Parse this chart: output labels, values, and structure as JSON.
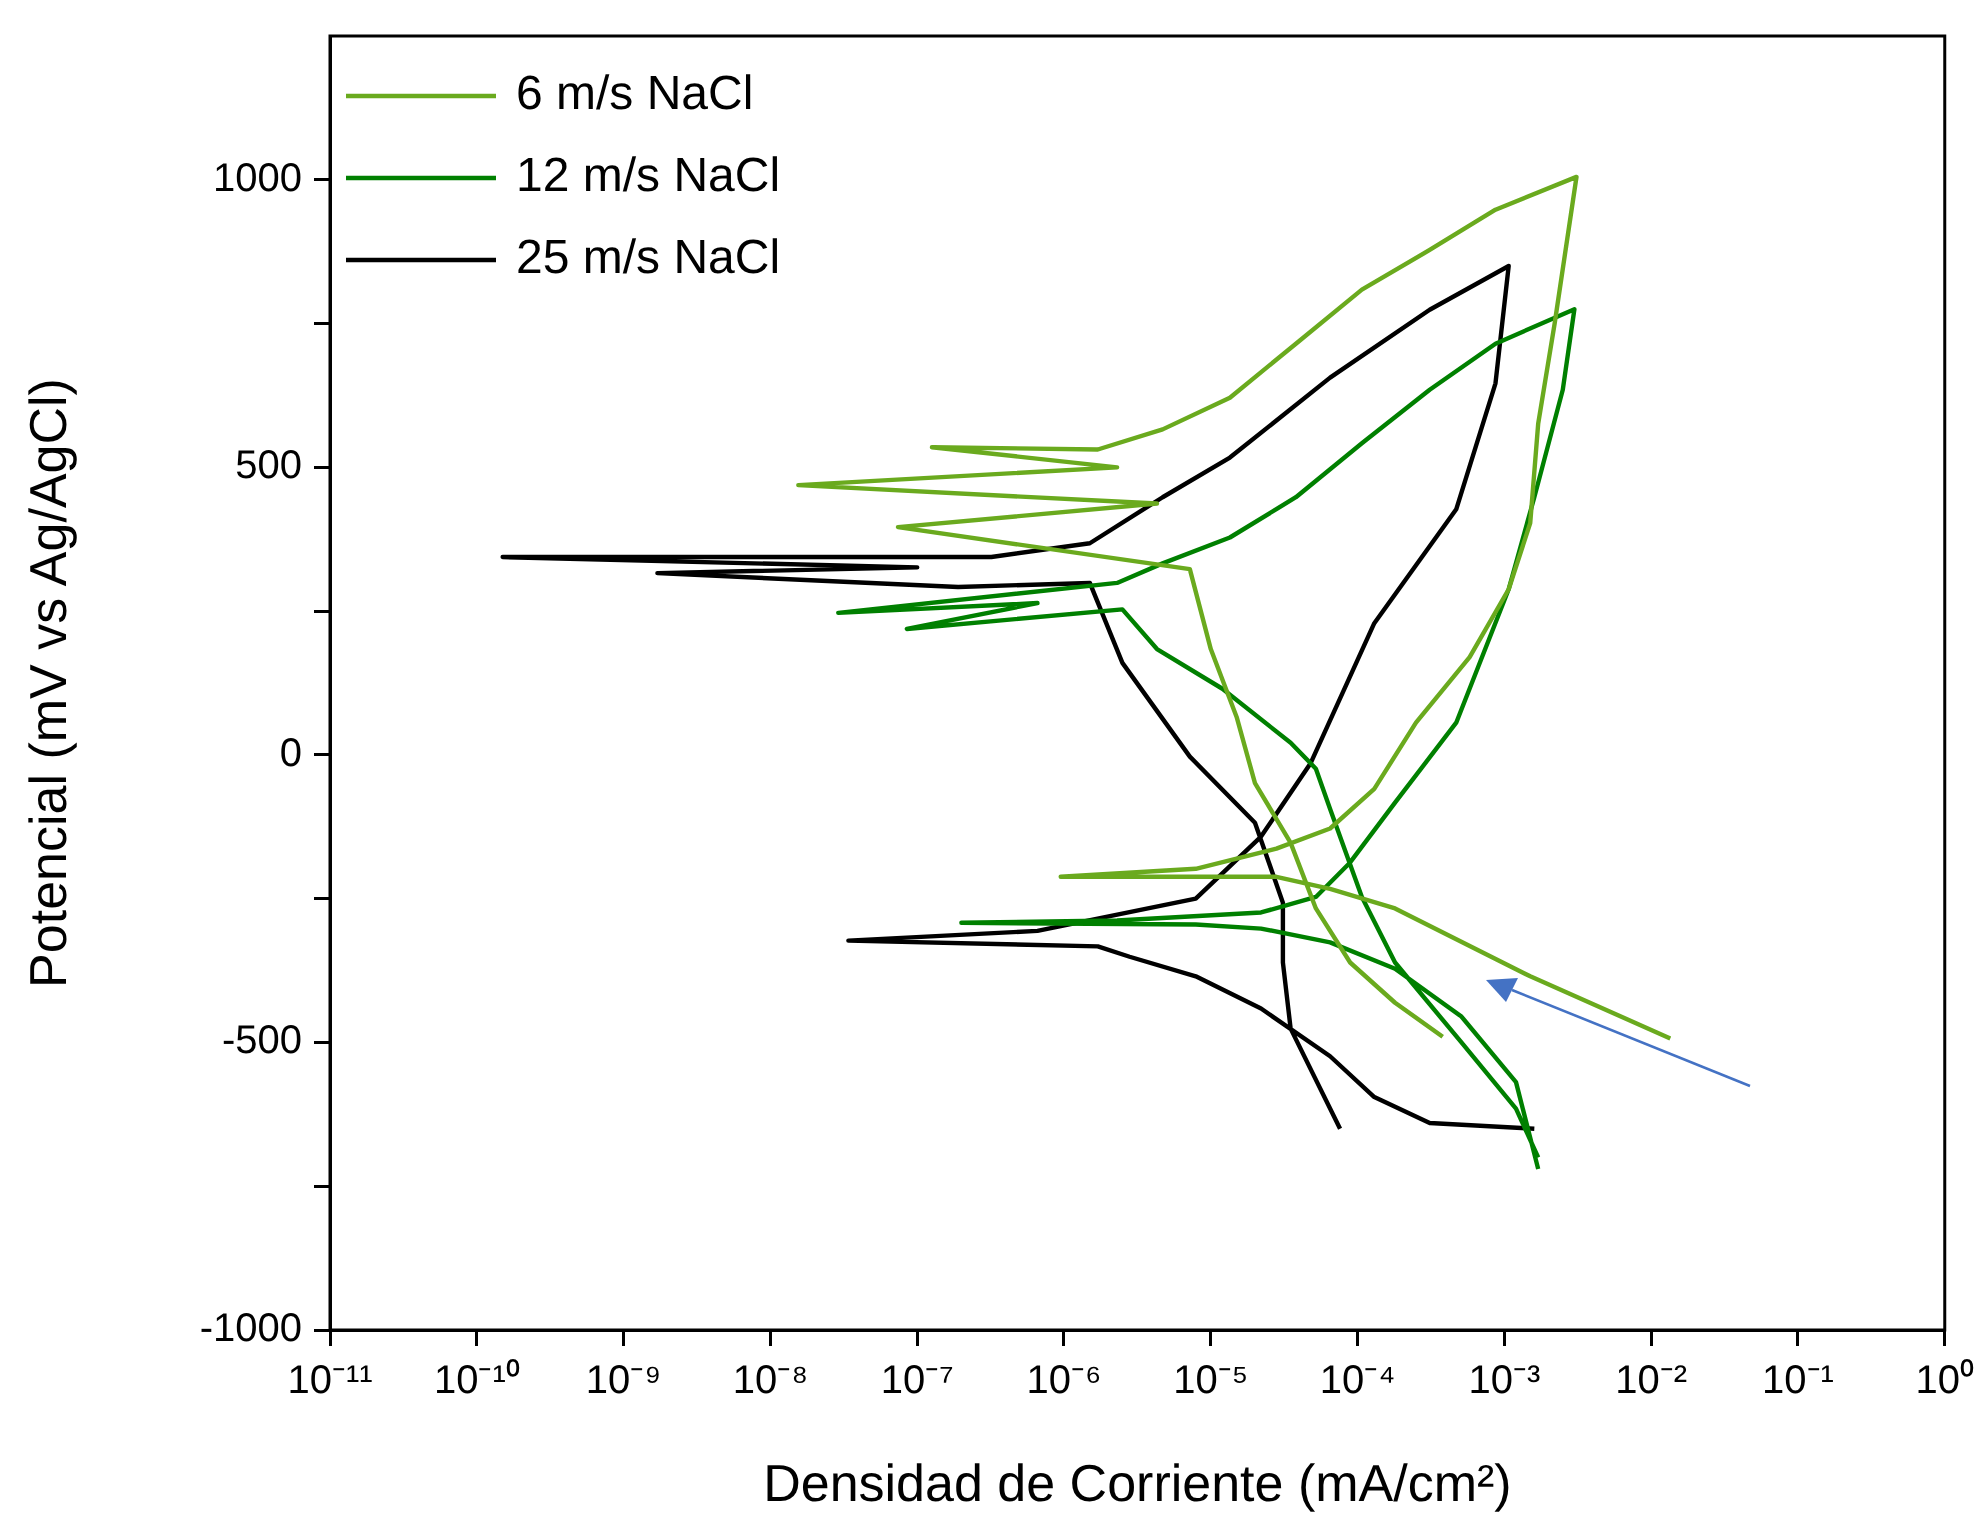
{
  "chart_data": {
    "type": "line",
    "xlabel": "Densidad de Corriente (mA/cm²)",
    "ylabel": "Potencial (mV vs Ag/AgCl)",
    "log": "x",
    "grid": false,
    "legend": "top left",
    "marker": "none",
    "xlim": [
      1e-11,
      1
    ],
    "ylim": [
      -1000,
      1250
    ],
    "xticks": [
      {
        "value": 1e-11,
        "label": "10⁻¹¹"
      },
      {
        "value": 1e-10,
        "label": "10⁻¹⁰"
      },
      {
        "value": 1e-09,
        "label": "10⁻⁹"
      },
      {
        "value": 1e-08,
        "label": "10⁻⁸"
      },
      {
        "value": 1e-07,
        "label": "10⁻⁷"
      },
      {
        "value": 1e-06,
        "label": "10⁻⁶"
      },
      {
        "value": 1e-05,
        "label": "10⁻⁵"
      },
      {
        "value": 0.0001,
        "label": "10⁻⁴"
      },
      {
        "value": 0.001,
        "label": "10⁻³"
      },
      {
        "value": 0.01,
        "label": "10⁻²"
      },
      {
        "value": 0.1,
        "label": "10⁻¹"
      },
      {
        "value": 1,
        "label": "10⁰"
      }
    ],
    "yticks": [
      -1000,
      {
        "value": -750,
        "label": null
      },
      -500,
      {
        "value": -250,
        "label": null
      },
      0,
      {
        "value": 250,
        "label": null
      },
      500,
      {
        "value": 750,
        "label": null
      },
      1000
    ],
    "series": [
      {
        "name": "6 m/s NaCl",
        "color": "#6aaa1e",
        "x": [
          0.0135,
          0.0015,
          0.00018,
          6.5e-05,
          2.8e-05,
          9.5e-07,
          7.9e-06,
          2.8e-05,
          6.5e-05,
          0.00013,
          0.00025,
          0.00058,
          0.00107,
          0.0015,
          0.0017,
          0.0022,
          0.0031,
          0.00087,
          0.00031,
          0.000107,
          3.8e-05,
          1.35e-05,
          4.7e-06,
          1.7e-06,
          1.26e-07,
          2.3e-06,
          1.55e-08,
          4.3e-06,
          7.4e-08,
          7.2e-06,
          1e-05,
          1.5e-05,
          2e-05,
          3.5e-05,
          5.2e-05,
          8.9e-05,
          0.00018,
          0.00038
        ],
        "values": [
          -493,
          -385,
          -267,
          -233,
          -212,
          -212,
          -198,
          -163,
          -128,
          -59,
          56,
          170,
          288,
          403,
          576,
          750,
          1005,
          948,
          878,
          809,
          715,
          621,
          566,
          531,
          535,
          500,
          469,
          437,
          396,
          323,
          184,
          66,
          -49,
          -153,
          -267,
          -361,
          -431,
          -490
        ]
      },
      {
        "name": "12 m/s NaCl",
        "color": "#008000",
        "x": [
          0.0017,
          0.0012,
          0.00051,
          0.00018,
          6.5e-05,
          2.2e-05,
          7.9e-06,
          2e-07,
          2.3e-06,
          2.2e-05,
          5.2e-05,
          8.9e-05,
          0.00018,
          0.00047,
          0.00107,
          0.0016,
          0.0025,
          0.003,
          0.00087,
          0.00031,
          0.000107,
          3.8e-05,
          1.35e-05,
          4.7e-06,
          2.3e-06,
          2.9e-08,
          6.6e-07,
          8.5e-08,
          2.5e-06,
          4.3e-06,
          1.2e-05,
          3.5e-05,
          5.2e-05,
          6.5e-05,
          0.000107,
          0.00018,
          0.00051,
          0.0012,
          0.0017
        ],
        "values": [
          -720,
          -569,
          -455,
          -372,
          -326,
          -302,
          -295,
          -292,
          -288,
          -274,
          -247,
          -187,
          -83,
          56,
          288,
          448,
          635,
          775,
          715,
          635,
          542,
          448,
          378,
          333,
          299,
          247,
          264,
          219,
          253,
          184,
          115,
          21,
          -24,
          -94,
          -247,
          -361,
          -500,
          -615,
          -700
        ]
      },
      {
        "name": "25 m/s NaCl",
        "color": "#000000",
        "x": [
          0.0016,
          0.00031,
          0.00013,
          6.5e-05,
          2.2e-05,
          7.9e-06,
          2.8e-06,
          1.7e-06,
          3.4e-08,
          6.6e-07,
          7.9e-06,
          2.2e-05,
          4.8e-05,
          0.00013,
          0.00047,
          0.00087,
          0.00107,
          0.00031,
          6.5e-05,
          1.35e-05,
          4.7e-06,
          1.5e-06,
          3.2e-07,
          1.5e-10,
          1e-07,
          1.7e-09,
          1.9e-07,
          1.5e-06,
          2.5e-06,
          7.2e-06,
          2e-05,
          3.1e-05,
          3.1e-05,
          3.5e-05,
          7.6e-05
        ],
        "values": [
          -650,
          -640,
          -595,
          -524,
          -441,
          -385,
          -351,
          -333,
          -323,
          -306,
          -250,
          -142,
          -14,
          229,
          427,
          646,
          850,
          774,
          656,
          517,
          448,
          368,
          344,
          344,
          326,
          316,
          292,
          299,
          160,
          -3,
          -118,
          -257,
          -361,
          -476,
          -650
        ]
      }
    ]
  }
}
